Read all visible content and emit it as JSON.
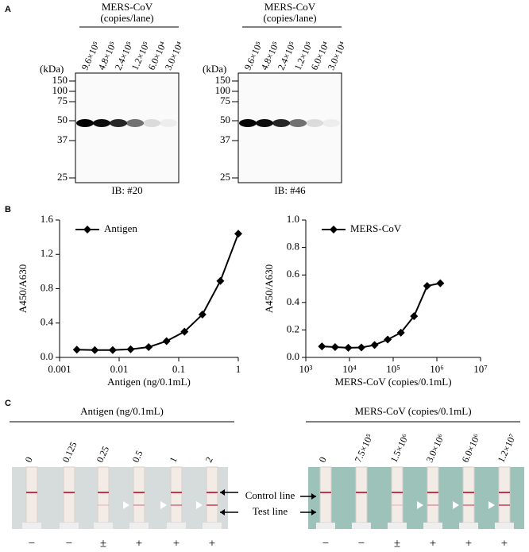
{
  "panel_labels": [
    "A",
    "B",
    "C"
  ],
  "panel_a": {
    "kda_unit": "(kDa)",
    "markers": [
      "150",
      "100",
      "75",
      "50",
      "37",
      "25"
    ],
    "blots": [
      {
        "header": "MERS-CoV",
        "subheader": "(copies/lane)",
        "lanes": [
          "9.6×10⁵",
          "4.8×10⁵",
          "2.4×10⁵",
          "1.2×10⁵",
          "6.0×10⁴",
          "3.0×10⁴"
        ],
        "caption": "IB: #20"
      },
      {
        "header": "MERS-CoV",
        "subheader": "(copies/lane)",
        "lanes": [
          "9.6×10⁵",
          "4.8×10⁵",
          "2.4×10⁵",
          "1.2×10⁵",
          "6.0×10⁴",
          "3.0×10⁴"
        ],
        "caption": "IB: #46"
      }
    ]
  },
  "chart_data": [
    {
      "type": "line",
      "x_label": "Antigen (ng/0.1mL)",
      "y_label": "A450/A630",
      "log_x": true,
      "legend": "upper left",
      "x": [
        0.00195,
        0.0039,
        0.0078,
        0.0156,
        0.03125,
        0.0625,
        0.125,
        0.25,
        0.5,
        1
      ],
      "series": [
        {
          "name": "Antigen",
          "color": "#000000",
          "values": [
            0.09,
            0.085,
            0.085,
            0.095,
            0.12,
            0.19,
            0.3,
            0.5,
            0.89,
            1.44
          ]
        }
      ],
      "xlim": [
        0.001,
        1
      ],
      "xticks": [
        0.001,
        0.01,
        0.1,
        1
      ],
      "ylim": [
        0,
        1.6
      ],
      "yticks": [
        {
          "value": 0,
          "label": "0.0"
        },
        0.4,
        0.8,
        1.2,
        1.6
      ]
    },
    {
      "type": "line",
      "x_label": "MERS-CoV (copies/0.1mL)",
      "y_label": "A450/A630",
      "log_x": true,
      "legend": "upper left",
      "x": [
        2340,
        4690,
        9380,
        18750,
        37500,
        75000,
        150000,
        300000,
        600000,
        1200000
      ],
      "series": [
        {
          "name": "MERS-CoV",
          "color": "#000000",
          "values": [
            0.08,
            0.075,
            0.07,
            0.072,
            0.09,
            0.13,
            0.18,
            0.3,
            0.52,
            0.54
          ]
        }
      ],
      "xlim": [
        1000,
        10000000
      ],
      "xticks": [
        {
          "value": 1000,
          "label": "10³"
        },
        {
          "value": 10000,
          "label": "10⁴"
        },
        {
          "value": 100000,
          "label": "10⁵"
        },
        {
          "value": 1000000,
          "label": "10⁶"
        },
        {
          "value": 10000000,
          "label": "10⁷"
        }
      ],
      "ylim": [
        0,
        1
      ],
      "yticks": [
        {
          "value": 0,
          "label": "0.0"
        },
        0.2,
        0.4,
        0.6,
        0.8,
        {
          "value": 1,
          "label": "1.0"
        }
      ]
    }
  ],
  "panel_c": {
    "annotations": [
      "Control line",
      "Test line"
    ],
    "groups": [
      {
        "header": "Antigen (ng/0.1mL)",
        "lanes": [
          "0",
          "0.125",
          "0.25",
          "0.5",
          "1",
          "2"
        ],
        "results": [
          "−",
          "−",
          "±",
          "+",
          "+",
          "+"
        ]
      },
      {
        "header": "MERS-CoV (copies/0.1mL)",
        "lanes": [
          "0",
          "7.5×10⁵",
          "1.5×10⁶",
          "3.0×10⁶",
          "6.0×10⁶",
          "1.2×10⁷"
        ],
        "results": [
          "−",
          "−",
          "±",
          "+",
          "+",
          "+"
        ]
      }
    ]
  }
}
